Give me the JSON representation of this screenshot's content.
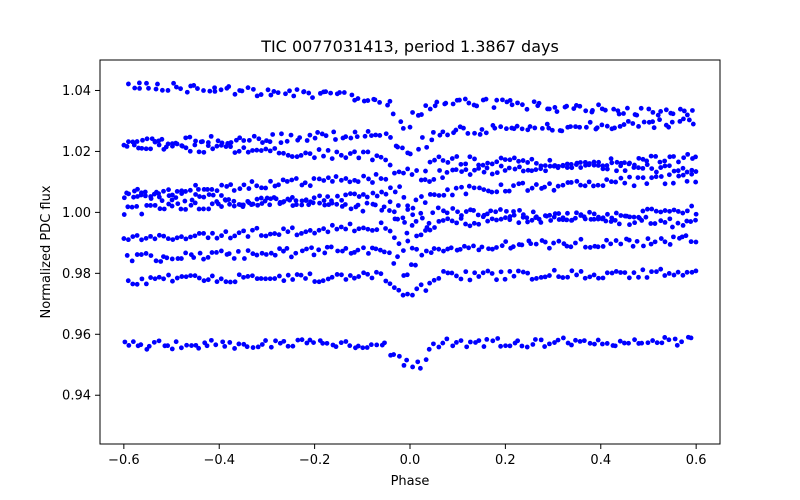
{
  "chart_data": {
    "type": "scatter",
    "title": "TIC 0077031413, period 1.3867 days",
    "xlabel": "Phase",
    "ylabel": "Normalized PDC flux",
    "xlim": [
      -0.65,
      0.65
    ],
    "ylim": [
      0.924,
      1.05
    ],
    "xticks": [
      -0.6,
      -0.4,
      -0.2,
      0.0,
      0.2,
      0.4,
      0.6
    ],
    "xtick_labels": [
      "−0.6",
      "−0.4",
      "−0.2",
      "0.0",
      "0.2",
      "0.4",
      "0.6"
    ],
    "yticks": [
      0.94,
      0.96,
      0.98,
      1.0,
      1.02,
      1.04
    ],
    "ytick_labels": [
      "0.94",
      "0.96",
      "0.98",
      "1.00",
      "1.02",
      "1.04"
    ],
    "grid": false,
    "marker_color": "#0000ff",
    "series": [
      {
        "phase_range": [
          -0.6,
          0.6
        ],
        "n_cycles": 10,
        "samples_per_cycle": 130,
        "cycle_offsets": [
          0.037,
          0.026,
          0.018,
          0.012,
          0.006,
          0.001,
          -0.004,
          -0.012,
          -0.021,
          -0.043
        ],
        "cycle_slopes": [
          -0.008,
          0.006,
          -0.007,
          0.01,
          0.009,
          -0.008,
          0.008,
          0.005,
          0.002,
          0.001
        ],
        "transit_center": 0.0,
        "transit_depth": 0.012,
        "transit_halfwidth": 0.055
      }
    ]
  }
}
